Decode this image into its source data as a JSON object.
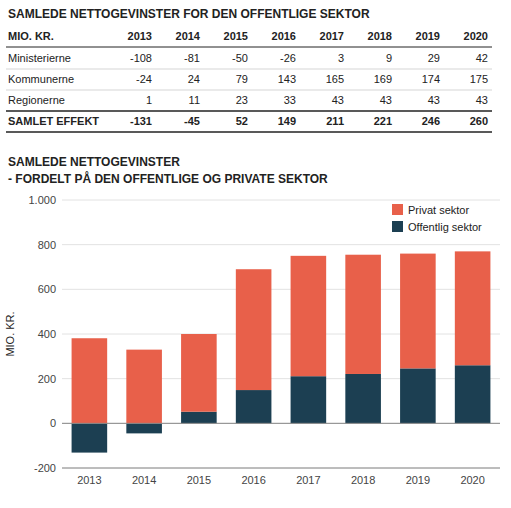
{
  "chart_data": [
    {
      "type": "table",
      "title": "SAMLEDE NETTOGEVINSTER FOR DEN OFFENTLIGE SEKTOR",
      "header": "MIO. KR.",
      "categories": [
        "2013",
        "2014",
        "2015",
        "2016",
        "2017",
        "2018",
        "2019",
        "2020"
      ],
      "series": [
        {
          "name": "Ministerierne",
          "values": [
            -108,
            -81,
            -50,
            -26,
            3,
            9,
            29,
            42
          ]
        },
        {
          "name": "Kommunerne",
          "values": [
            -24,
            24,
            79,
            143,
            165,
            169,
            174,
            175
          ]
        },
        {
          "name": "Regionerne",
          "values": [
            1,
            11,
            23,
            33,
            43,
            43,
            43,
            43
          ]
        },
        {
          "name": "SAMLET EFFEKT",
          "values": [
            -131,
            -45,
            52,
            149,
            211,
            221,
            246,
            260
          ]
        }
      ]
    },
    {
      "type": "bar",
      "title": "SAMLEDE NETTOGEVINSTER",
      "subtitle": "- FORDELT PÅ DEN OFFENTLIGE OG PRIVATE SEKTOR",
      "y_label": "MIO. KR.",
      "categories": [
        "2013",
        "2014",
        "2015",
        "2016",
        "2017",
        "2018",
        "2019",
        "2020"
      ],
      "series": [
        {
          "name": "Offentlig sektor",
          "color": "#1C3F52",
          "values": [
            -131,
            -45,
            52,
            149,
            211,
            221,
            246,
            260
          ]
        },
        {
          "name": "Privat sektor",
          "color": "#E8604A",
          "values": [
            381,
            330,
            348,
            541,
            539,
            534,
            514,
            510
          ]
        }
      ],
      "stacked": true,
      "ylim": [
        -200,
        1000
      ],
      "yticks": [
        -200,
        0,
        200,
        400,
        600,
        {
          "value": 1000,
          "label": "1.000"
        },
        800
      ],
      "grid": true,
      "legend": "upper right"
    }
  ]
}
